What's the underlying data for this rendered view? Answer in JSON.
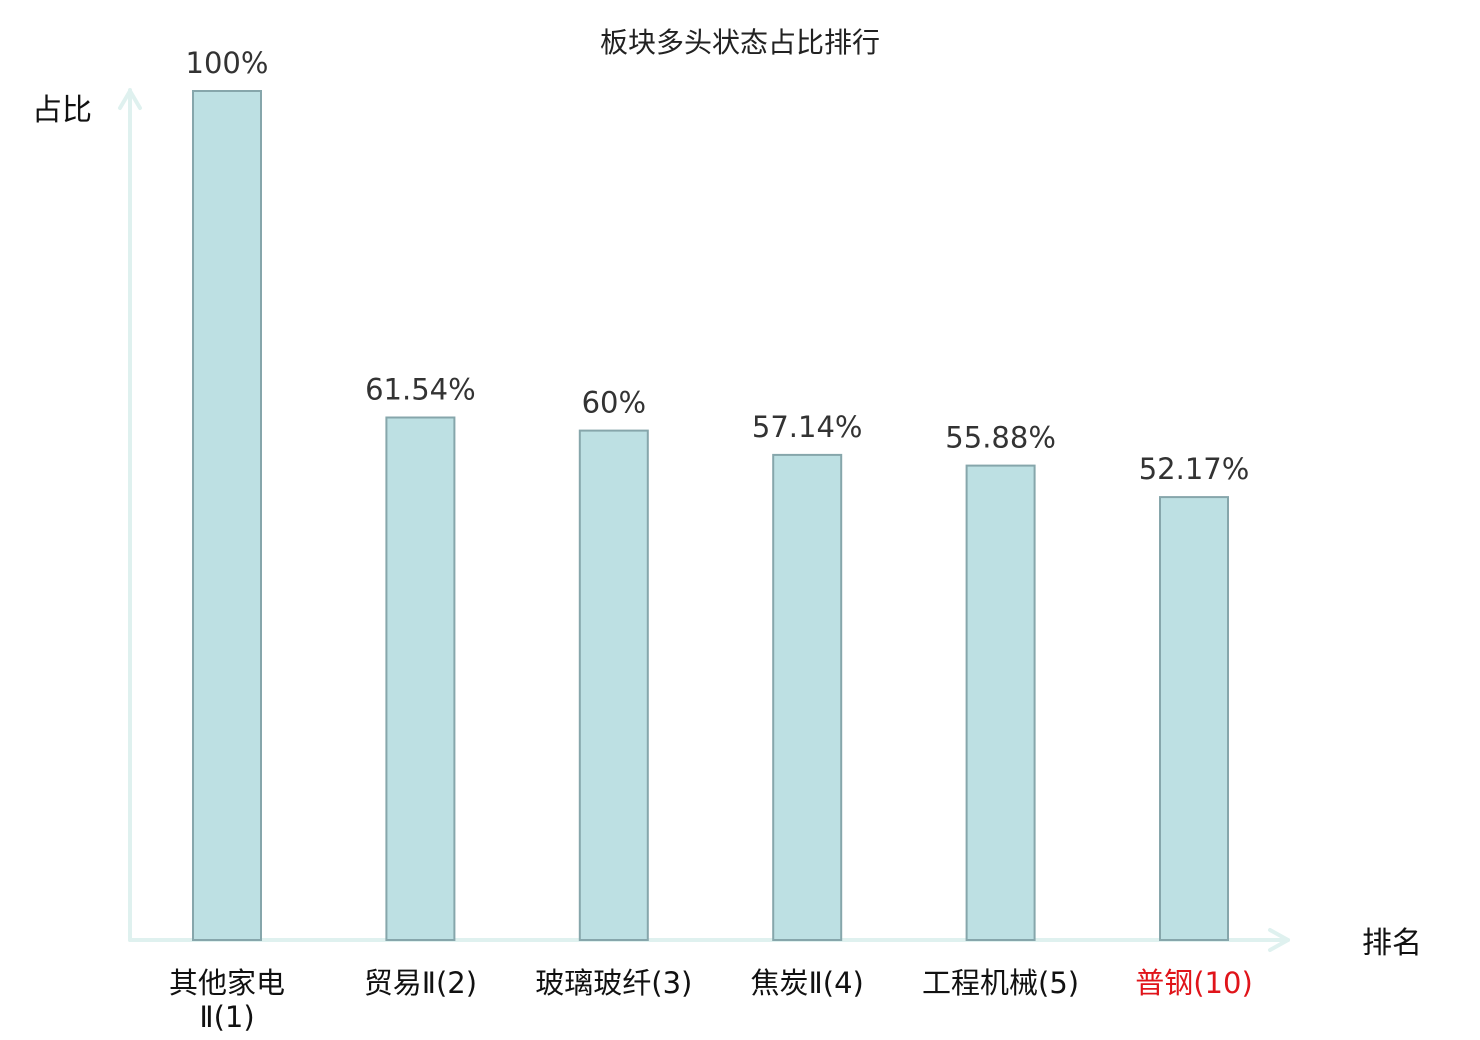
{
  "chart_data": {
    "type": "bar",
    "title": "板块多头状态占比排行",
    "xlabel": "排名",
    "ylabel": "占比",
    "ylim": [
      0,
      100
    ],
    "grid": false,
    "categories": [
      {
        "lines": [
          "其他家电",
          "Ⅱ(1)"
        ],
        "highlight": false
      },
      {
        "lines": [
          "贸易Ⅱ(2)"
        ],
        "highlight": false
      },
      {
        "lines": [
          "玻璃玻纤(3)"
        ],
        "highlight": false
      },
      {
        "lines": [
          "焦炭Ⅱ(4)"
        ],
        "highlight": false
      },
      {
        "lines": [
          "工程机械(5)"
        ],
        "highlight": false
      },
      {
        "lines": [
          "普钢(10)"
        ],
        "highlight": true
      }
    ],
    "values": [
      100,
      61.54,
      60,
      57.14,
      55.88,
      52.17
    ],
    "value_labels": [
      "100%",
      "61.54%",
      "60%",
      "57.14%",
      "55.88%",
      "52.17%"
    ],
    "colors": {
      "bar_fill": "#bde0e3",
      "bar_stroke": "#86a6ab",
      "axis": "#dff1ef",
      "highlight_text": "#e0141a",
      "text": "#111111"
    }
  }
}
